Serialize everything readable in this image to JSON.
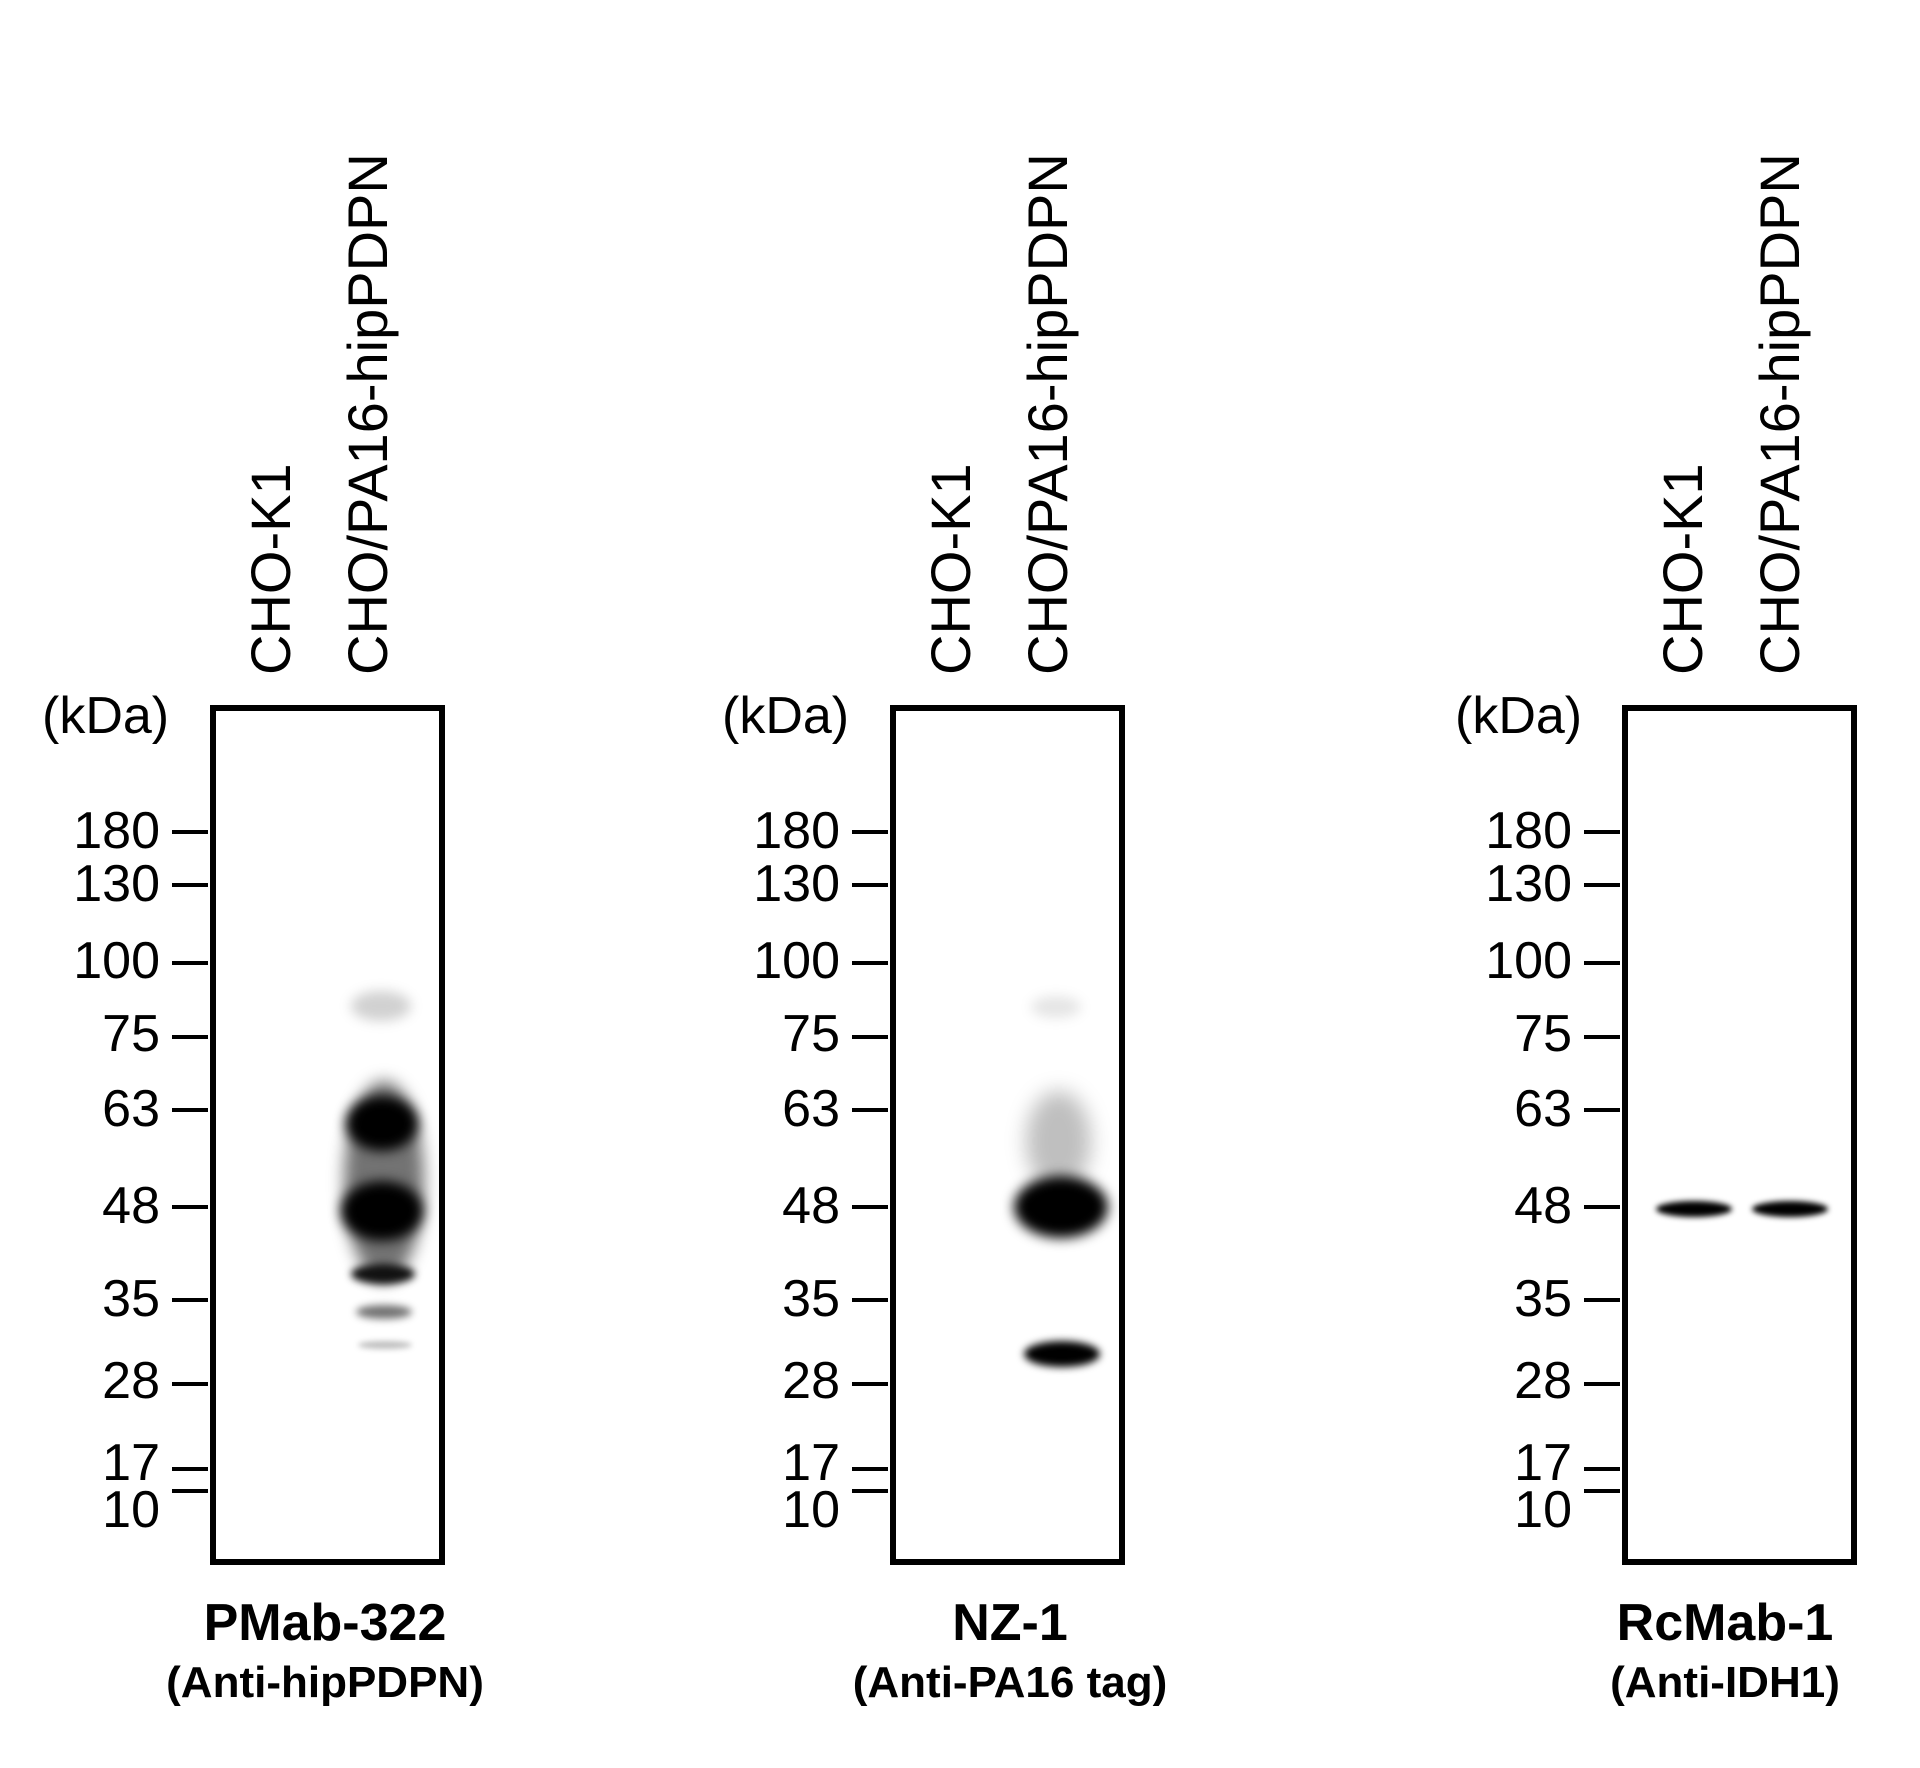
{
  "lane_labels": [
    "CHO-K1",
    "CHO/PA16-hipPDPN"
  ],
  "unit_label": "(kDa)",
  "markers": [
    "180",
    "130",
    "100",
    "75",
    "63",
    "48",
    "35",
    "28",
    "17",
    "10"
  ],
  "panels": [
    {
      "antibody": "PMab-322",
      "target": "(Anti-hipPDPN)"
    },
    {
      "antibody": "NZ-1",
      "target": "(Anti-PA16 tag)"
    },
    {
      "antibody": "RcMab-1",
      "target": "(Anti-IDH1)"
    }
  ]
}
